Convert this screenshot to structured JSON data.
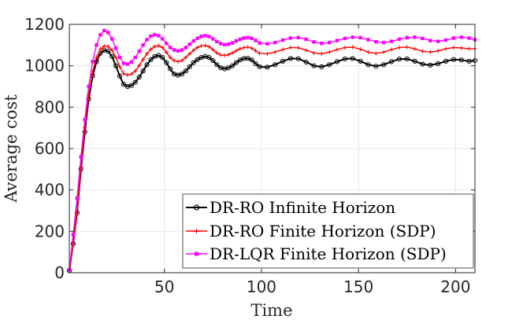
{
  "chart_data": {
    "type": "line",
    "title": "",
    "xlabel": "Time",
    "ylabel": "Average cost",
    "xlim": [
      1,
      210
    ],
    "ylim": [
      0,
      1200
    ],
    "xticks": [
      50,
      100,
      150,
      200
    ],
    "yticks": [
      0,
      200,
      400,
      600,
      800,
      1000,
      1200
    ],
    "xtick_labels": [
      "50",
      "100",
      "150",
      "200"
    ],
    "ytick_labels": [
      "0",
      "200",
      "400",
      "600",
      "800",
      "1000",
      "1200"
    ],
    "grid": true,
    "legend_position": "bottom-right",
    "series": [
      {
        "name": "DR-RO Infinite Horizon",
        "color": "#000000",
        "marker": "circle",
        "x": [
          1,
          3,
          5,
          7,
          9,
          11,
          13,
          15,
          17,
          19,
          21,
          23,
          25,
          27,
          29,
          31,
          33,
          35,
          37,
          39,
          41,
          43,
          45,
          47,
          49,
          51,
          53,
          55,
          57,
          59,
          61,
          63,
          65,
          67,
          69,
          71,
          73,
          75,
          77,
          79,
          81,
          83,
          85,
          87,
          89,
          91,
          93,
          95,
          97,
          99,
          103,
          107,
          111,
          115,
          119,
          123,
          127,
          131,
          135,
          139,
          143,
          147,
          151,
          155,
          159,
          163,
          167,
          171,
          175,
          179,
          183,
          187,
          191,
          195,
          199,
          203,
          207,
          210
        ],
        "values": [
          10,
          140,
          290,
          500,
          680,
          840,
          950,
          1020,
          1060,
          1075,
          1070,
          1045,
          1000,
          950,
          910,
          900,
          905,
          920,
          945,
          975,
          1005,
          1030,
          1045,
          1050,
          1040,
          1015,
          985,
          960,
          955,
          960,
          975,
          995,
          1015,
          1030,
          1040,
          1045,
          1040,
          1025,
          1005,
          990,
          985,
          990,
          1000,
          1015,
          1028,
          1035,
          1036,
          1028,
          1010,
          995,
          993,
          1005,
          1022,
          1035,
          1034,
          1018,
          1000,
          995,
          1005,
          1020,
          1033,
          1035,
          1022,
          1005,
          998,
          1005,
          1020,
          1032,
          1033,
          1022,
          1008,
          1003,
          1010,
          1022,
          1030,
          1028,
          1022,
          1025
        ]
      },
      {
        "name": "DR-RO Finite Horizon (SDP)",
        "color": "#ff0000",
        "marker": "plus",
        "x": [
          1,
          3,
          5,
          7,
          9,
          11,
          13,
          15,
          17,
          19,
          21,
          23,
          25,
          27,
          29,
          31,
          33,
          35,
          37,
          39,
          41,
          43,
          45,
          47,
          49,
          51,
          53,
          55,
          57,
          59,
          61,
          63,
          65,
          67,
          69,
          71,
          73,
          75,
          77,
          79,
          81,
          83,
          85,
          87,
          89,
          91,
          93,
          95,
          97,
          99,
          103,
          107,
          111,
          115,
          119,
          123,
          127,
          131,
          135,
          139,
          143,
          147,
          151,
          155,
          159,
          163,
          167,
          171,
          175,
          179,
          183,
          187,
          191,
          195,
          199,
          203,
          207,
          210
        ],
        "values": [
          10,
          140,
          290,
          510,
          700,
          860,
          970,
          1040,
          1080,
          1095,
          1093,
          1075,
          1040,
          995,
          962,
          955,
          960,
          975,
          1000,
          1030,
          1058,
          1080,
          1093,
          1097,
          1088,
          1065,
          1040,
          1025,
          1020,
          1025,
          1040,
          1058,
          1075,
          1088,
          1096,
          1098,
          1092,
          1078,
          1062,
          1052,
          1050,
          1054,
          1062,
          1073,
          1082,
          1088,
          1090,
          1085,
          1072,
          1060,
          1058,
          1066,
          1078,
          1088,
          1087,
          1075,
          1062,
          1058,
          1066,
          1078,
          1088,
          1090,
          1080,
          1066,
          1060,
          1066,
          1078,
          1088,
          1090,
          1082,
          1070,
          1066,
          1072,
          1082,
          1088,
          1086,
          1082,
          1082
        ]
      },
      {
        "name": "DR-LQR Finite Horizon (SDP)",
        "color": "#ff00ff",
        "marker": "square",
        "x": [
          1,
          3,
          5,
          7,
          9,
          11,
          13,
          15,
          17,
          19,
          21,
          23,
          25,
          27,
          29,
          31,
          33,
          35,
          37,
          39,
          41,
          43,
          45,
          47,
          49,
          51,
          53,
          55,
          57,
          59,
          61,
          63,
          65,
          67,
          69,
          71,
          73,
          75,
          77,
          79,
          81,
          83,
          85,
          87,
          89,
          91,
          93,
          95,
          97,
          99,
          103,
          107,
          111,
          115,
          119,
          123,
          127,
          131,
          135,
          139,
          143,
          147,
          151,
          155,
          159,
          163,
          167,
          171,
          175,
          179,
          183,
          187,
          191,
          195,
          199,
          203,
          207,
          210
        ],
        "values": [
          15,
          185,
          360,
          560,
          740,
          900,
          1020,
          1100,
          1150,
          1170,
          1160,
          1130,
          1085,
          1040,
          1012,
          1008,
          1018,
          1040,
          1070,
          1100,
          1126,
          1143,
          1150,
          1145,
          1130,
          1108,
          1088,
          1076,
          1072,
          1076,
          1088,
          1104,
          1120,
          1133,
          1142,
          1145,
          1141,
          1130,
          1117,
          1107,
          1102,
          1104,
          1110,
          1120,
          1128,
          1134,
          1136,
          1132,
          1122,
          1110,
          1106,
          1112,
          1124,
          1134,
          1136,
          1128,
          1115,
          1108,
          1112,
          1122,
          1132,
          1138,
          1136,
          1126,
          1116,
          1112,
          1118,
          1128,
          1136,
          1138,
          1132,
          1122,
          1118,
          1124,
          1134,
          1138,
          1134,
          1126
        ]
      }
    ]
  }
}
